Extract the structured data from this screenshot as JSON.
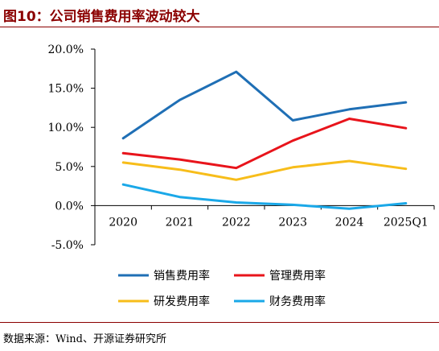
{
  "figure": {
    "title": "图10：公司销售费用率波动较大",
    "source": "数据来源：Wind、开源证券研究所"
  },
  "chart_data": {
    "type": "line",
    "title": "图10：公司销售费用率波动较大",
    "xlabel": "",
    "ylabel": "",
    "categories": [
      "2020",
      "2021",
      "2022",
      "2023",
      "2024",
      "2025Q1"
    ],
    "y_ticks": [
      "20.0%",
      "15.0%",
      "10.0%",
      "5.0%",
      "0.0%",
      "-5.0%"
    ],
    "ylim": [
      -5,
      20
    ],
    "grid": false,
    "legend_position": "bottom",
    "series": [
      {
        "name": "销售费用率",
        "color": "#1F6FB5",
        "values": [
          8.6,
          13.5,
          17.1,
          10.9,
          12.3,
          13.2
        ]
      },
      {
        "name": "管理费用率",
        "color": "#E8141B",
        "values": [
          6.7,
          5.9,
          4.8,
          8.3,
          11.1,
          9.9
        ]
      },
      {
        "name": "研发费用率",
        "color": "#F7BD1A",
        "values": [
          5.5,
          4.6,
          3.3,
          4.9,
          5.7,
          4.7
        ]
      },
      {
        "name": "财务费用率",
        "color": "#1AA8E8",
        "values": [
          2.7,
          1.1,
          0.4,
          0.1,
          -0.4,
          0.3
        ]
      }
    ]
  }
}
